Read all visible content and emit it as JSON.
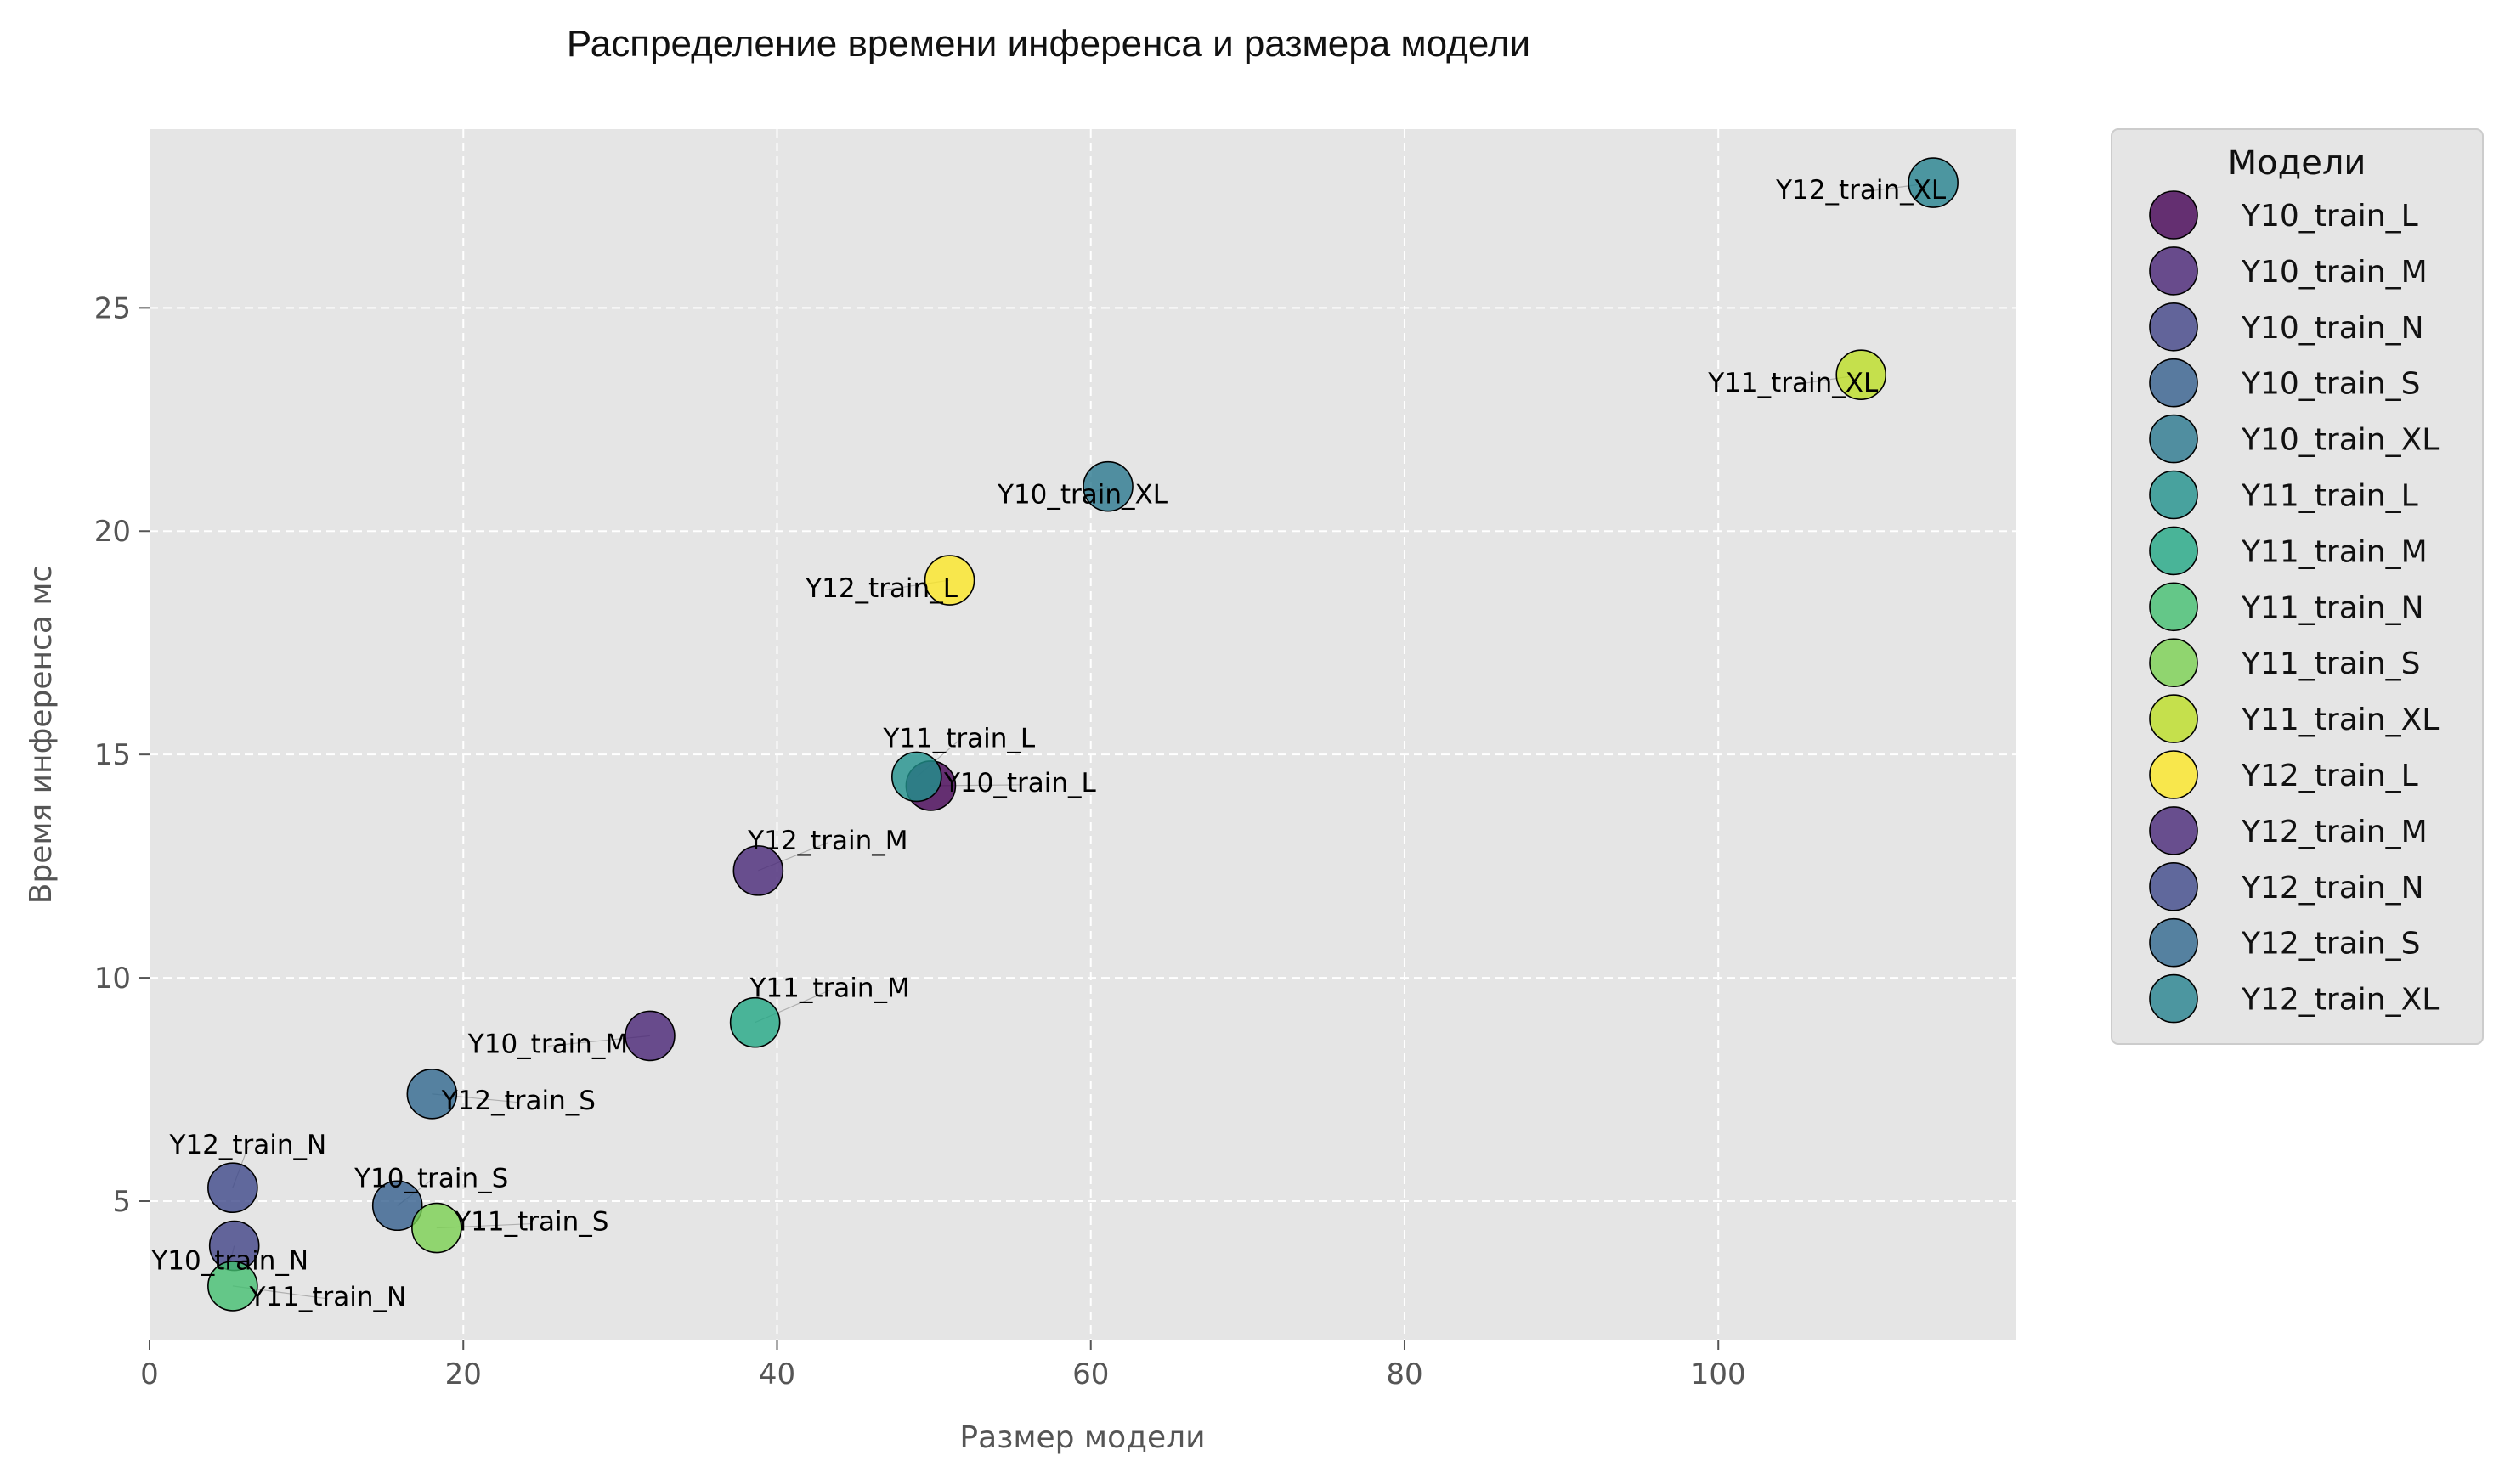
{
  "chart_data": {
    "type": "scatter",
    "title": "Распределение времени инференса и размера модели",
    "xlabel": "Размер модели",
    "ylabel": "Время инференса мс",
    "xlim": [
      0,
      119
    ],
    "ylim": [
      1.9,
      29.0
    ],
    "xticks": [
      0,
      20,
      40,
      60,
      80,
      100
    ],
    "yticks": [
      5,
      10,
      15,
      20,
      25
    ],
    "grid": true,
    "legend_title": "Модели",
    "legend_position": "outside-right",
    "colormap": "viridis",
    "series": [
      {
        "name": "Y10_train_L",
        "x": 49.8,
        "y": 14.3,
        "color": "#440154"
      },
      {
        "name": "Y10_train_M",
        "x": 31.9,
        "y": 8.7,
        "color": "#482475"
      },
      {
        "name": "Y10_train_N",
        "x": 5.4,
        "y": 4.0,
        "color": "#414487"
      },
      {
        "name": "Y10_train_S",
        "x": 15.8,
        "y": 4.9,
        "color": "#355f8d"
      },
      {
        "name": "Y10_train_XL",
        "x": 61.1,
        "y": 21.0,
        "color": "#2a788e"
      },
      {
        "name": "Y11_train_L",
        "x": 48.9,
        "y": 14.5,
        "color": "#21918c"
      },
      {
        "name": "Y11_train_M",
        "x": 38.6,
        "y": 9.0,
        "color": "#22a884"
      },
      {
        "name": "Y11_train_N",
        "x": 5.3,
        "y": 3.1,
        "color": "#44bf70"
      },
      {
        "name": "Y11_train_S",
        "x": 18.3,
        "y": 4.4,
        "color": "#7ad151"
      },
      {
        "name": "Y11_train_XL",
        "x": 109.1,
        "y": 23.5,
        "color": "#bddf26"
      },
      {
        "name": "Y12_train_L",
        "x": 51.0,
        "y": 18.9,
        "color": "#fde725"
      },
      {
        "name": "Y12_train_M",
        "x": 38.8,
        "y": 12.4,
        "color": "#482878"
      },
      {
        "name": "Y12_train_N",
        "x": 5.3,
        "y": 5.3,
        "color": "#3e4989"
      },
      {
        "name": "Y12_train_S",
        "x": 18.0,
        "y": 7.4,
        "color": "#31688e"
      },
      {
        "name": "Y12_train_XL",
        "x": 113.7,
        "y": 27.8,
        "color": "#26828e"
      }
    ]
  }
}
